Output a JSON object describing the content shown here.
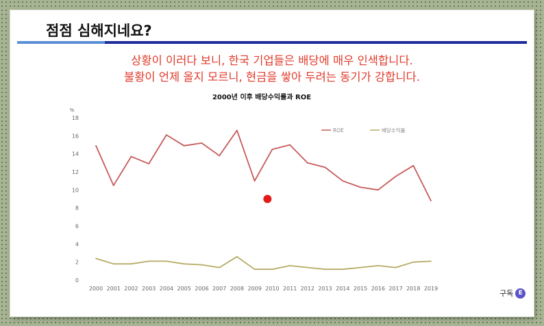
{
  "slide": {
    "title": "점점 심해지네요?",
    "subtitle_lines": [
      "상황이 이러다 보니, 한국 기업들은 배당에 매우 인색합니다.",
      "불황이 언제 올지 모르니, 현금을 쌓아 두려는 동기가 강합니다."
    ],
    "badge_label": "구독",
    "badge_icon": "letter-e-icon",
    "accent_color": "#1c2c9a",
    "subtitle_color": "#e03a2b"
  },
  "chart_data": {
    "type": "line",
    "title": "2000년 이후 배당수익률과 ROE",
    "ylabel": "%",
    "xlabel": "",
    "ylim": [
      0,
      18
    ],
    "yticks": [
      0,
      2,
      4,
      6,
      8,
      10,
      12,
      14,
      16,
      18
    ],
    "grid": false,
    "legend_position": "top-right",
    "x": [
      "2000",
      "2001",
      "2002",
      "2003",
      "2004",
      "2005",
      "2006",
      "2007",
      "2008",
      "2009",
      "2010",
      "2011",
      "2012",
      "2013",
      "2014",
      "2015",
      "2016",
      "2017",
      "2018",
      "2019"
    ],
    "series": [
      {
        "name": "ROE",
        "color": "#c75a5a",
        "values": [
          14.9,
          10.5,
          13.7,
          12.9,
          16.1,
          14.9,
          15.2,
          13.8,
          16.6,
          11.0,
          14.5,
          15.0,
          13.0,
          12.5,
          11.0,
          10.3,
          10.0,
          11.5,
          12.7,
          8.8
        ]
      },
      {
        "name": "배당수익률",
        "color": "#b5aa63",
        "values": [
          2.4,
          1.8,
          1.8,
          2.1,
          2.1,
          1.8,
          1.7,
          1.4,
          2.6,
          1.2,
          1.2,
          1.6,
          1.4,
          1.2,
          1.2,
          1.4,
          1.6,
          1.4,
          2.0,
          2.1
        ]
      }
    ],
    "marker": {
      "color": "#e31b1b",
      "x": "2010",
      "y": 9.0
    }
  }
}
